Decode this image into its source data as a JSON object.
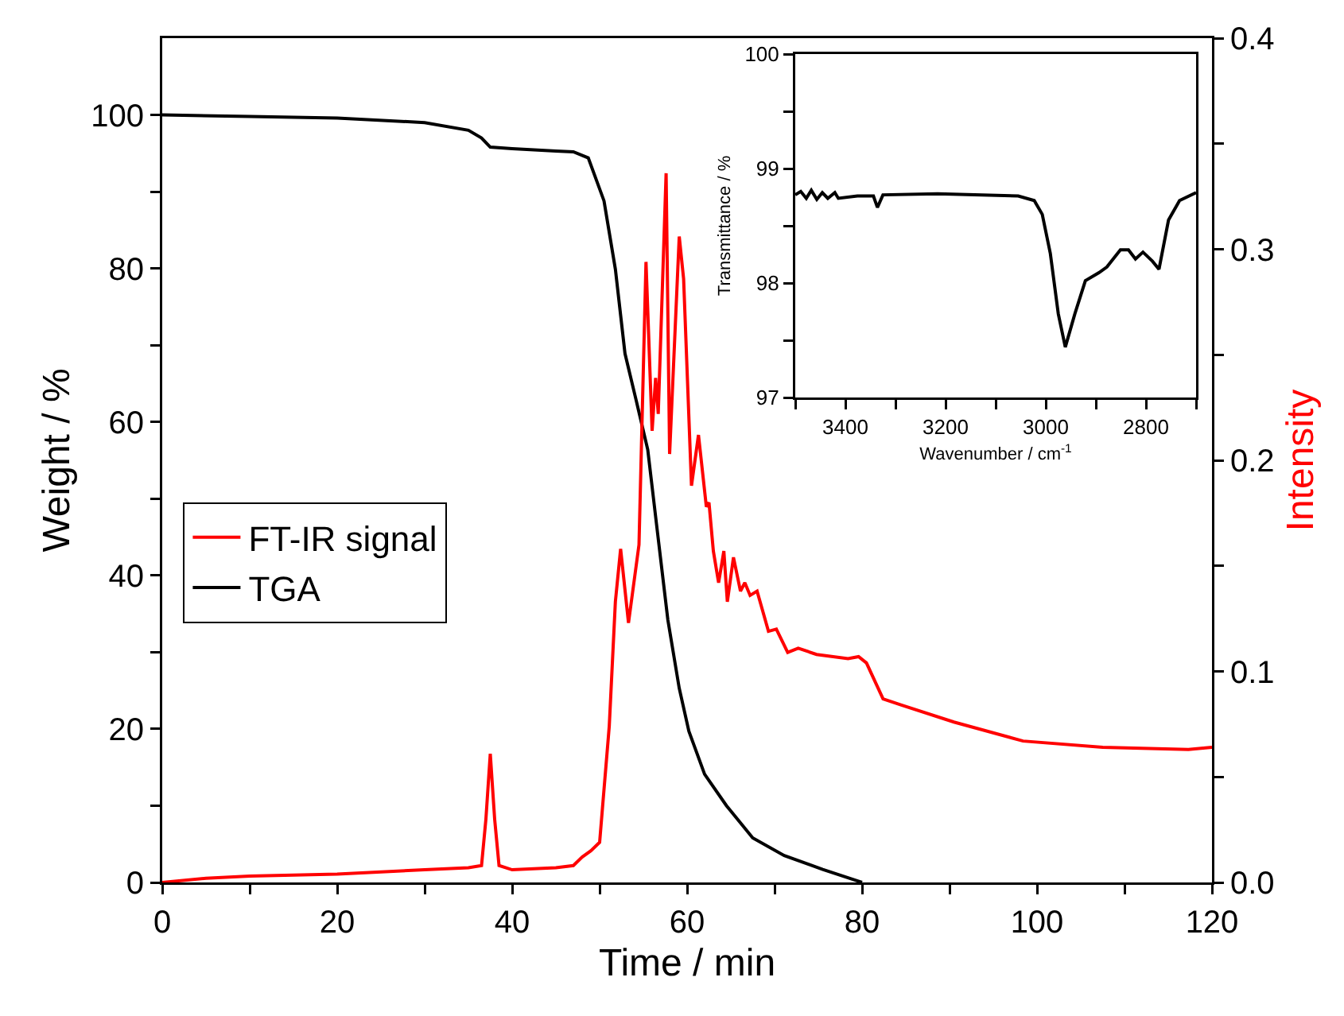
{
  "chart_data": [
    {
      "type": "line",
      "xlabel": "Time / min",
      "ylabel": "Weight / %",
      "y2label": "Intensity",
      "xlim": [
        0,
        120
      ],
      "xticks": [
        0,
        {
          "value": 10,
          "label": null
        },
        20,
        {
          "value": 30,
          "label": null
        },
        40,
        {
          "value": 50,
          "label": null
        },
        60,
        {
          "value": 70,
          "label": null
        },
        80,
        {
          "value": 90,
          "label": null
        },
        100,
        {
          "value": 110,
          "label": null
        },
        120
      ],
      "ylim": [
        0,
        110
      ],
      "yticks": [
        0,
        {
          "value": 10,
          "label": null
        },
        20,
        {
          "value": 30,
          "label": null
        },
        40,
        {
          "value": 50,
          "label": null
        },
        60,
        {
          "value": 70,
          "label": null
        },
        80,
        {
          "value": 90,
          "label": null
        },
        100
      ],
      "y2lim": [
        0,
        0.4
      ],
      "y2ticks": [
        {
          "value": 0,
          "label": "0.0"
        },
        {
          "value": 0.05,
          "label": null
        },
        0.1,
        {
          "value": 0.15,
          "label": null
        },
        0.2,
        {
          "value": 0.25,
          "label": null
        },
        0.3,
        {
          "value": 0.35,
          "label": null
        },
        0.4
      ],
      "legend": "left",
      "series": [
        {
          "name": "FT-IR signal",
          "color": "#ff0000",
          "axis": "y2",
          "x": [
            0,
            5,
            10,
            20,
            30,
            35,
            36.5,
            37,
            37.5,
            38,
            38.5,
            40,
            45,
            47,
            48,
            49,
            50,
            51.1,
            51.8,
            52.4,
            53.3,
            54.5,
            55.3,
            56.0,
            56.4,
            56.7,
            57.6,
            58.0,
            59.1,
            59.6,
            60.5,
            61.3,
            62.2,
            62.5,
            63.0,
            63.6,
            64.2,
            64.6,
            65.3,
            66.1,
            66.6,
            67.2,
            68.0,
            69.3,
            70.2,
            71.5,
            72.7,
            74.8,
            78.4,
            79.6,
            80.5,
            82.4,
            84.5,
            90.5,
            98.4,
            107.5,
            117.3,
            120
          ],
          "values": [
            0,
            0.002,
            0.003,
            0.004,
            0.006,
            0.007,
            0.008,
            0.03,
            0.061,
            0.03,
            0.008,
            0.006,
            0.007,
            0.008,
            0.012,
            0.015,
            0.019,
            0.074,
            0.133,
            0.158,
            0.123,
            0.16,
            0.294,
            0.214,
            0.239,
            0.222,
            0.336,
            0.203,
            0.306,
            0.286,
            0.188,
            0.212,
            0.178,
            0.18,
            0.157,
            0.142,
            0.157,
            0.133,
            0.154,
            0.138,
            0.142,
            0.136,
            0.138,
            0.119,
            0.12,
            0.109,
            0.111,
            0.108,
            0.106,
            0.107,
            0.104,
            0.087,
            0.084,
            0.076,
            0.067,
            0.064,
            0.063,
            0.064
          ]
        },
        {
          "name": "TGA",
          "color": "#000000",
          "x": [
            0,
            10,
            20,
            30,
            35,
            36.5,
            37.5,
            40,
            45,
            47,
            48.7,
            50.5,
            51.8,
            52.9,
            54.2,
            55.5,
            56.5,
            57.8,
            59.1,
            60.2,
            62.0,
            64.5,
            67.5,
            71.1,
            75.5,
            79.5,
            80
          ],
          "values": [
            100,
            99.8,
            99.6,
            99.0,
            98.0,
            97.0,
            95.8,
            95.6,
            95.3,
            95.2,
            94.4,
            88.8,
            79.9,
            68.9,
            62.7,
            56.4,
            46.7,
            34.2,
            25.3,
            19.7,
            14.1,
            10.0,
            5.8,
            3.5,
            1.7,
            0.2,
            0
          ]
        }
      ]
    },
    {
      "type": "line",
      "xlabel": "Wavenumber / cm$^{-1}$",
      "ylabel": "Transmittance / %",
      "xlim": [
        3500,
        2700
      ],
      "xticks": [
        {
          "value": 3500,
          "label": null
        },
        3400,
        {
          "value": 3300,
          "label": null
        },
        3200,
        {
          "value": 3100,
          "label": null
        },
        3000,
        {
          "value": 2900,
          "label": null
        },
        2800,
        {
          "value": 2700,
          "label": null
        }
      ],
      "ylim": [
        97,
        100
      ],
      "yticks": [
        97,
        {
          "value": 97.5,
          "label": null
        },
        98,
        {
          "value": 98.5,
          "label": null
        },
        99,
        {
          "value": 99.5,
          "label": null
        },
        100
      ],
      "series": [
        {
          "color": "#000000",
          "x": [
            3500,
            3489,
            3478,
            3468,
            3457,
            3446,
            3435,
            3421,
            3414,
            3376,
            3344,
            3336,
            3325,
            3216,
            3055,
            3023,
            3007,
            2991,
            2975,
            2961,
            2942,
            2921,
            2894,
            2878,
            2851,
            2835,
            2821,
            2806,
            2787,
            2774,
            2755,
            2733,
            2700
          ],
          "values": [
            98.77,
            98.8,
            98.74,
            98.81,
            98.73,
            98.79,
            98.74,
            98.79,
            98.74,
            98.76,
            98.76,
            98.66,
            98.77,
            98.78,
            98.76,
            98.72,
            98.6,
            98.26,
            97.73,
            97.44,
            97.73,
            98.02,
            98.09,
            98.14,
            98.29,
            98.29,
            98.21,
            98.27,
            98.19,
            98.12,
            98.55,
            98.72,
            98.79
          ]
        }
      ]
    }
  ]
}
